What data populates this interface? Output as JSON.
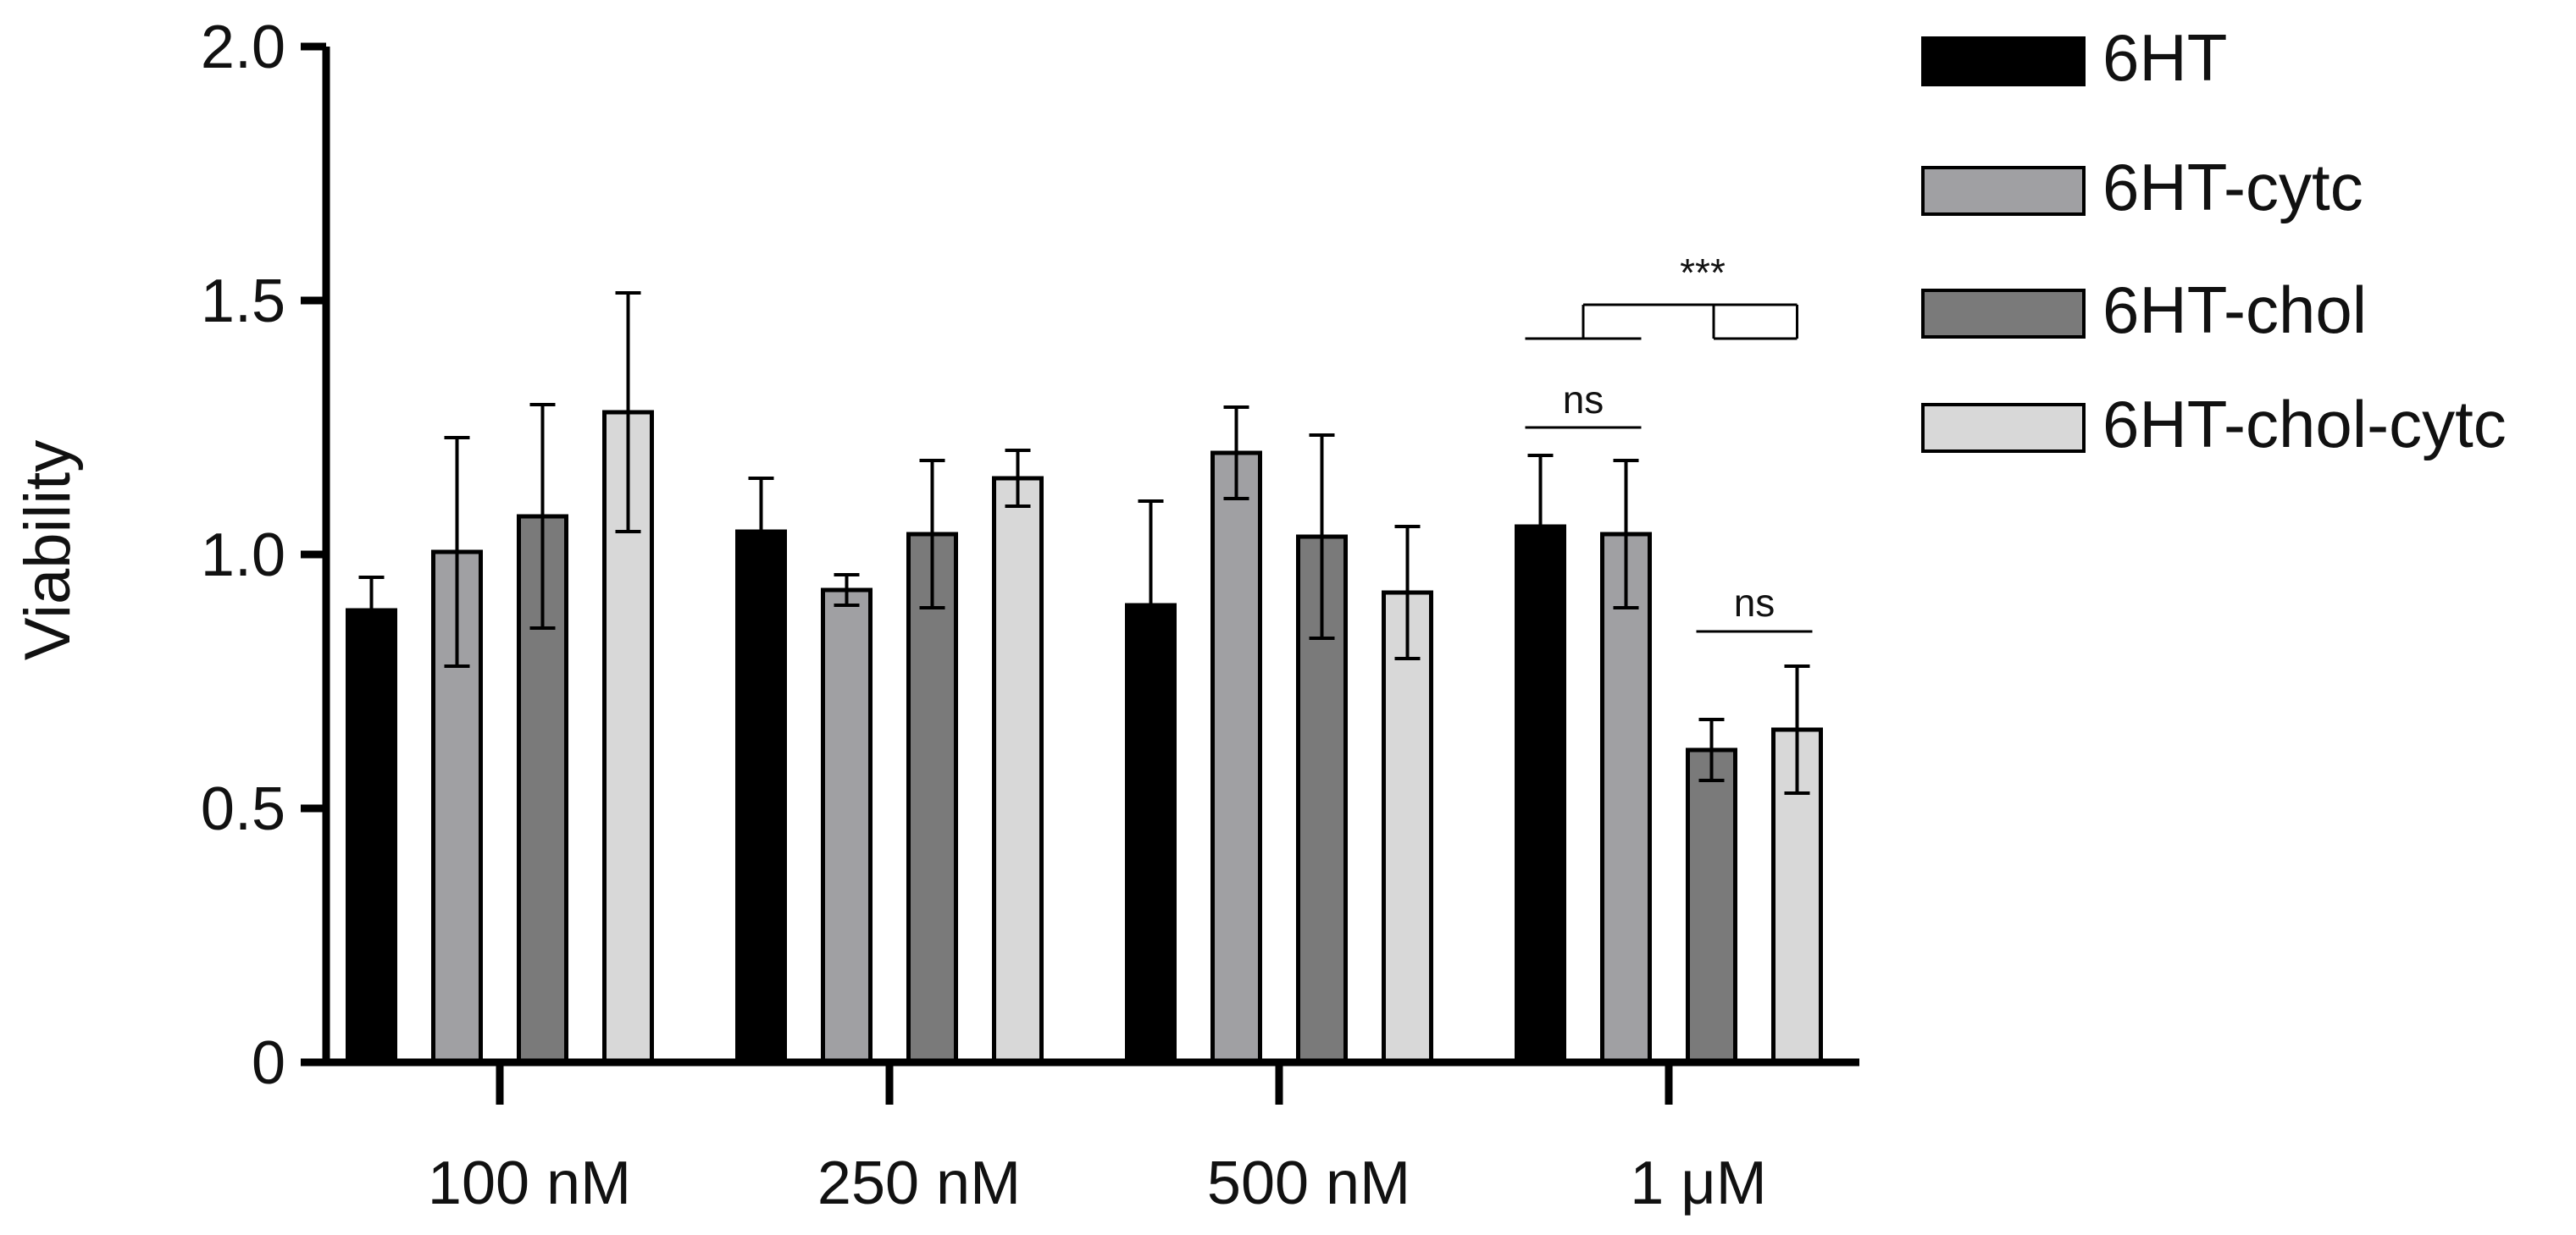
{
  "chart_data": {
    "type": "bar",
    "title": "",
    "xlabel": "",
    "ylabel": "Viability",
    "ylim": [
      0,
      2.0
    ],
    "yticks": [
      {
        "value": 0,
        "label": "0"
      },
      {
        "value": 0.5,
        "label": "0.5"
      },
      {
        "value": 1.0,
        "label": "1.0"
      },
      {
        "value": 1.5,
        "label": "1.5"
      },
      {
        "value": 2.0,
        "label": "2.0"
      }
    ],
    "categories": [
      "100 nM",
      "250 nM",
      "500 nM",
      "1 μM"
    ],
    "series": [
      {
        "name": "6HT",
        "color": "#000000",
        "values": [
          0.89,
          1.045,
          0.9,
          1.055
        ],
        "errors": [
          0.065,
          0.105,
          0.205,
          0.14
        ]
      },
      {
        "name": "6HT-cytc",
        "color": "#a0a0a3",
        "values": [
          1.005,
          0.93,
          1.2,
          1.04
        ],
        "errors": [
          0.225,
          0.03,
          0.09,
          0.145
        ]
      },
      {
        "name": "6HT-chol",
        "color": "#7a7a7a",
        "values": [
          1.075,
          1.04,
          1.035,
          0.615
        ],
        "errors": [
          0.22,
          0.145,
          0.2,
          0.06
        ]
      },
      {
        "name": "6HT-chol-cytc",
        "color": "#d8d8d8",
        "values": [
          1.28,
          1.15,
          0.925,
          0.655
        ],
        "errors": [
          0.235,
          0.055,
          0.13,
          0.125
        ]
      }
    ],
    "legend_position": "right",
    "annotations": [
      {
        "label": "ns",
        "category": "1 μM",
        "between": [
          "6HT",
          "6HT-cytc"
        ]
      },
      {
        "label": "ns",
        "category": "1 μM",
        "between": [
          "6HT-chol",
          "6HT-chol-cytc"
        ]
      },
      {
        "label": "***",
        "category": "1 μM",
        "between": [
          "6HT vs 6HT-cytc",
          "6HT-chol vs 6HT-chol-cytc"
        ]
      }
    ]
  }
}
